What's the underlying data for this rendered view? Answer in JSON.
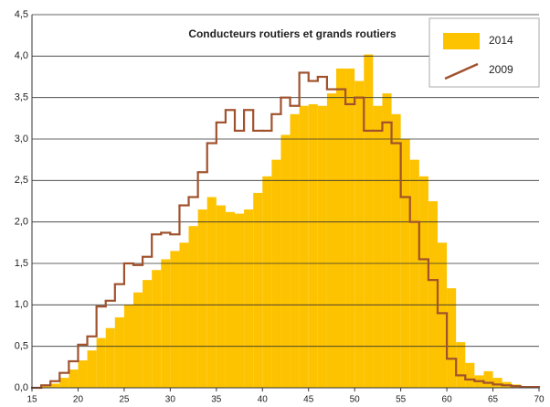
{
  "chart_data": {
    "type": "histogram",
    "title": "Conducteurs routiers et grands routiers",
    "bins": [
      15,
      16,
      17,
      18,
      19,
      20,
      21,
      22,
      23,
      24,
      25,
      26,
      27,
      28,
      29,
      30,
      31,
      32,
      33,
      34,
      35,
      36,
      37,
      38,
      39,
      40,
      41,
      42,
      43,
      44,
      45,
      46,
      47,
      48,
      49,
      50,
      51,
      52,
      53,
      54,
      55,
      56,
      57,
      58,
      59,
      60,
      61,
      62,
      63,
      64,
      65,
      66,
      67,
      68,
      69,
      70
    ],
    "series": [
      {
        "name": "2014",
        "color": "#fdc300",
        "style": "bar",
        "values": [
          0.0,
          0.02,
          0.05,
          0.12,
          0.22,
          0.33,
          0.45,
          0.6,
          0.72,
          0.85,
          1.0,
          1.15,
          1.3,
          1.42,
          1.55,
          1.65,
          1.75,
          1.95,
          2.15,
          2.3,
          2.2,
          2.12,
          2.1,
          2.15,
          2.35,
          2.55,
          2.75,
          3.05,
          3.3,
          3.4,
          3.42,
          3.4,
          3.55,
          3.85,
          3.85,
          3.7,
          4.02,
          3.4,
          3.55,
          3.3,
          3.0,
          2.75,
          2.55,
          2.25,
          1.75,
          1.2,
          0.55,
          0.3,
          0.15,
          0.2,
          0.12,
          0.07,
          0.04,
          0.02,
          0.01
        ]
      },
      {
        "name": "2009",
        "color": "#a0522d",
        "style": "step",
        "values": [
          0.0,
          0.03,
          0.08,
          0.18,
          0.32,
          0.52,
          0.62,
          0.98,
          1.05,
          1.25,
          1.5,
          1.48,
          1.58,
          1.85,
          1.87,
          1.85,
          2.2,
          2.3,
          2.6,
          2.95,
          3.2,
          3.35,
          3.1,
          3.35,
          3.1,
          3.1,
          3.3,
          3.5,
          3.4,
          3.8,
          3.7,
          3.75,
          3.6,
          3.6,
          3.42,
          3.5,
          3.1,
          3.1,
          3.2,
          2.95,
          2.3,
          2.0,
          1.55,
          1.3,
          0.9,
          0.35,
          0.15,
          0.1,
          0.08,
          0.06,
          0.04,
          0.03,
          0.02,
          0.01,
          0.01
        ]
      }
    ],
    "xlim": [
      15,
      70
    ],
    "xticks": [
      15,
      20,
      25,
      30,
      35,
      40,
      45,
      50,
      55,
      60,
      65,
      70
    ],
    "ylim": [
      0,
      4.5
    ],
    "yticks": [
      {
        "value": 0,
        "label": "0,0"
      },
      {
        "value": 0.5,
        "label": "0,5"
      },
      {
        "value": 1,
        "label": "1,0"
      },
      {
        "value": 1.5,
        "label": "1,5"
      },
      {
        "value": 2,
        "label": "2,0"
      },
      {
        "value": 2.5,
        "label": "2,5"
      },
      {
        "value": 3,
        "label": "3,0"
      },
      {
        "value": 3.5,
        "label": "3,5"
      },
      {
        "value": 4,
        "label": "4,0"
      },
      {
        "value": 4.5,
        "label": "4,5"
      }
    ],
    "grid": true,
    "legend": "top-right"
  }
}
